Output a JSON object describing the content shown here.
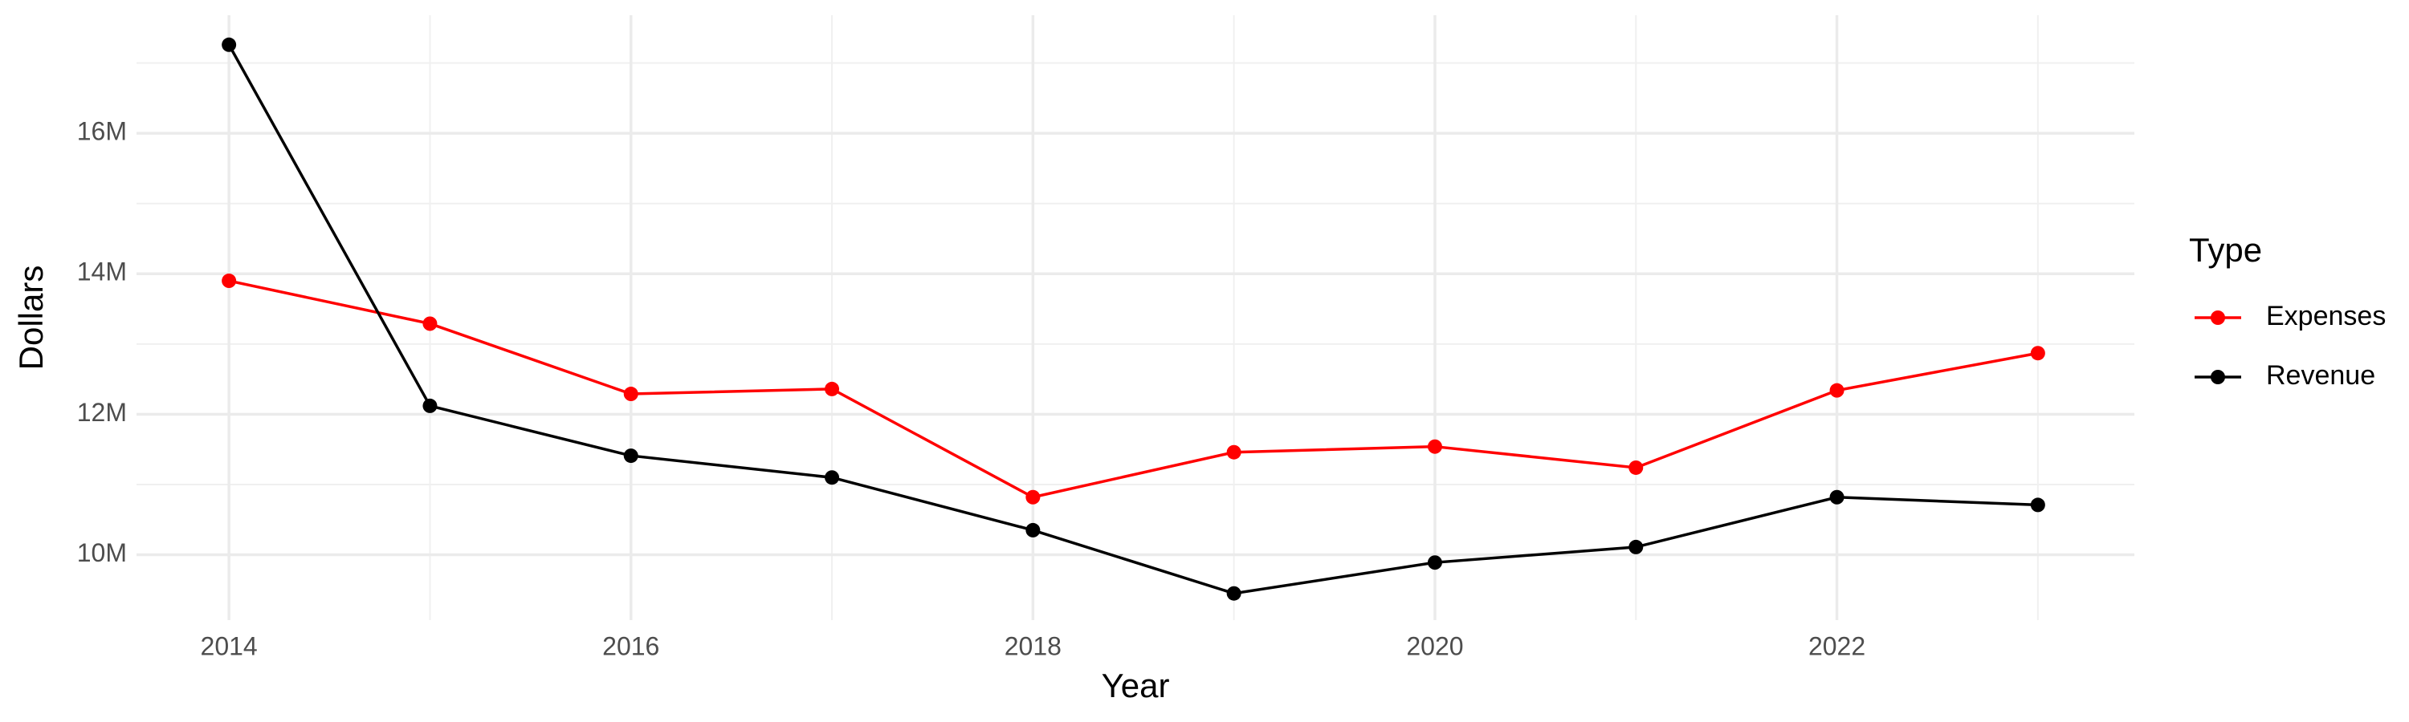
{
  "chart_data": {
    "type": "line",
    "x_label": "Year",
    "y_label": "Dollars",
    "legend_title": "Type",
    "x": [
      2014,
      2015,
      2016,
      2017,
      2018,
      2019,
      2020,
      2021,
      2022,
      2023
    ],
    "series": [
      {
        "name": "Expenses",
        "color": "#ff0000",
        "values": [
          13900000,
          13290000,
          12290000,
          12360000,
          10820000,
          11460000,
          11540000,
          11240000,
          12340000,
          12870000
        ]
      },
      {
        "name": "Revenue",
        "color": "#000000",
        "values": [
          17260000,
          12120000,
          11410000,
          11100000,
          10350000,
          9450000,
          9890000,
          10110000,
          10820000,
          10710000
        ]
      }
    ],
    "xlim": [
      2013.54,
      2023.48
    ],
    "xticks": [
      2014,
      2016,
      2018,
      2020,
      2022
    ],
    "xminor_ticks": [
      2015,
      2017,
      2019,
      2021,
      2023
    ],
    "ylim": [
      9070000,
      17680000
    ],
    "yticks": [
      {
        "value": 10000000,
        "label": "10M"
      },
      {
        "value": 12000000,
        "label": "12M"
      },
      {
        "value": 14000000,
        "label": "14M"
      },
      {
        "value": 16000000,
        "label": "16M"
      }
    ],
    "yminor_ticks": [
      11000000,
      13000000,
      15000000,
      17000000
    ],
    "grid": true,
    "legend_position": "right"
  }
}
